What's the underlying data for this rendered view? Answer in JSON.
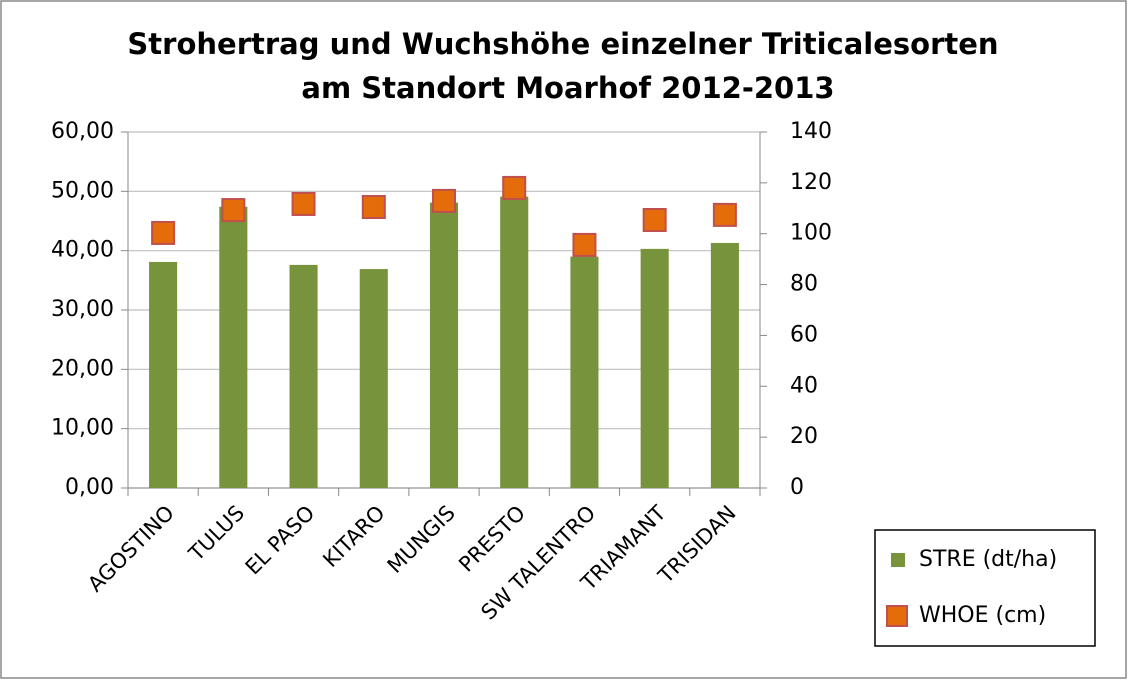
{
  "chart_data": {
    "type": "bar",
    "title": "Strohertrag und Wuchshöhe einzelner Triticalesorten",
    "subtitle": "am Standort Moarhof 2012-2013",
    "categories": [
      "AGOSTINO",
      "TULUS",
      "EL PASO",
      "KITARO",
      "MUNGIS",
      "PRESTO",
      "SW TALENTRO",
      "TRIAMANT",
      "TRISIDAN"
    ],
    "series": [
      {
        "name": "STRE (dt/ha)",
        "type": "bar",
        "color": "#77933c",
        "values": [
          38.1,
          47.4,
          37.6,
          36.9,
          48.1,
          49.1,
          39.0,
          40.3,
          41.3
        ]
      },
      {
        "name": "WHOE (cm)",
        "type": "scatter",
        "axis": "y2",
        "color": "#e46c0a",
        "values": [
          100.3,
          109.3,
          111.7,
          110.5,
          112.9,
          118.0,
          95.6,
          105.4,
          107.4
        ]
      }
    ],
    "ylim": [
      0,
      60
    ],
    "yticks": [
      {
        "value": 0,
        "label": "0,00"
      },
      {
        "value": 10,
        "label": "10,00"
      },
      {
        "value": 20,
        "label": "20,00"
      },
      {
        "value": 30,
        "label": "30,00"
      },
      {
        "value": 40,
        "label": "40,00"
      },
      {
        "value": 50,
        "label": "50,00"
      },
      {
        "value": 60,
        "label": "60,00"
      }
    ],
    "y2lim": [
      0,
      140
    ],
    "y2ticks": [
      0,
      20,
      40,
      60,
      80,
      100,
      120,
      140
    ],
    "grid": true
  }
}
